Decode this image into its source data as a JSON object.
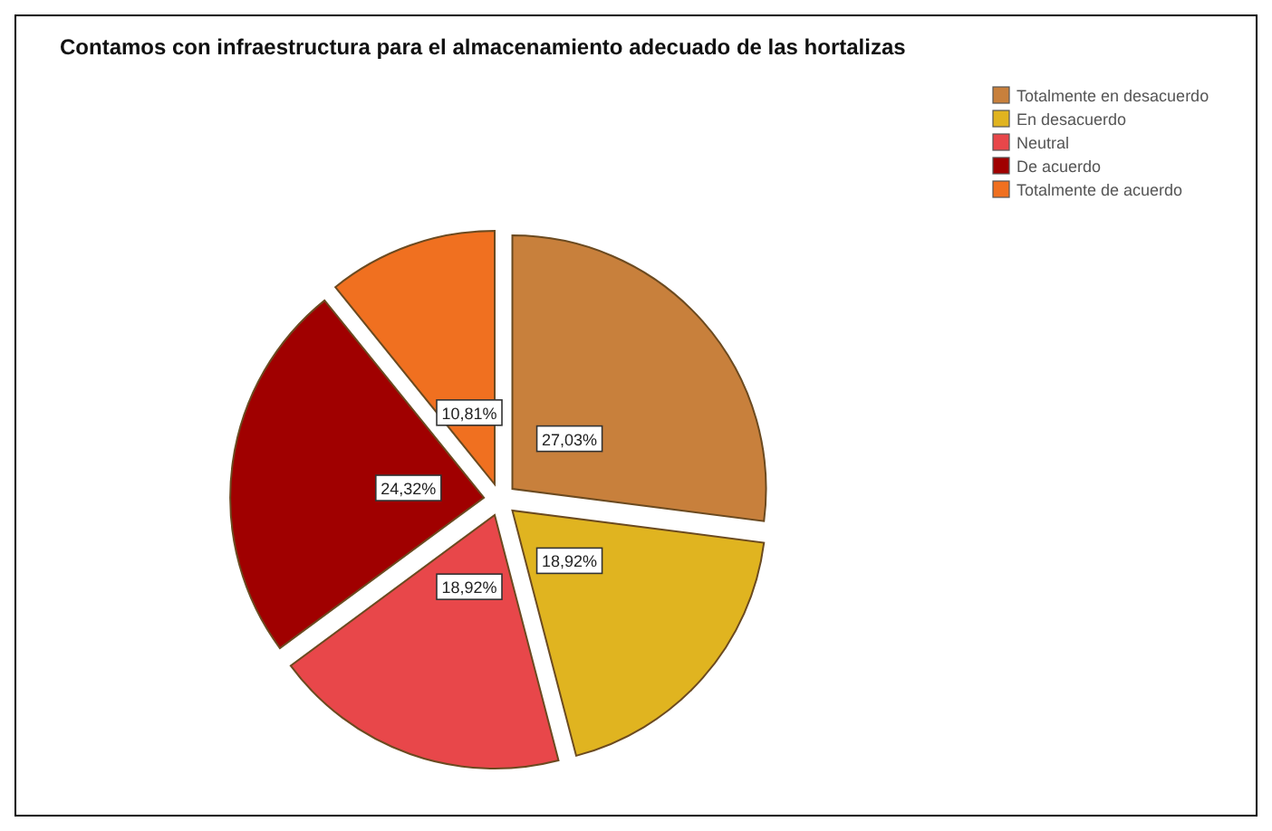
{
  "chart_data": {
    "type": "pie",
    "title": "Contamos con infraestructura para el almacenamiento adecuado de las hortalizas",
    "categories": [
      "Totalmente en desacuerdo",
      "En desacuerdo",
      "Neutral",
      "De acuerdo",
      "Totalmente de acuerdo"
    ],
    "values": [
      27.03,
      18.92,
      18.92,
      24.32,
      10.81
    ],
    "value_labels": [
      "27,03%",
      "18,92%",
      "18,92%",
      "24,32%",
      "10,81%"
    ],
    "colors": [
      "#c8803c",
      "#e0b420",
      "#e8474a",
      "#a00000",
      "#f07020"
    ],
    "legend": "top right"
  }
}
